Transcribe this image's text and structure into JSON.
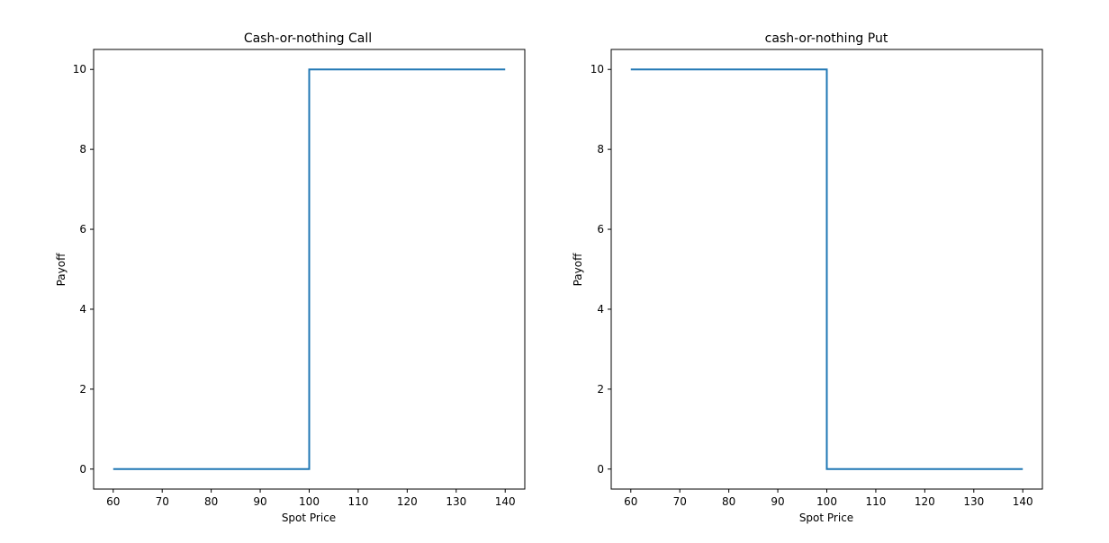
{
  "chart_data": [
    {
      "type": "line",
      "title": "Cash-or-nothing Call",
      "xlabel": "Spot Price",
      "ylabel": "Payoff",
      "xlim": [
        56,
        144
      ],
      "ylim": [
        -0.5,
        10.5
      ],
      "xticks": [
        60,
        70,
        80,
        90,
        100,
        110,
        120,
        130,
        140
      ],
      "yticks": [
        0,
        2,
        4,
        6,
        8,
        10
      ],
      "grid": false,
      "series": [
        {
          "color": "#1f77b4",
          "x": [
            60,
            100,
            100,
            140
          ],
          "y": [
            0,
            0,
            10,
            10
          ]
        }
      ]
    },
    {
      "type": "line",
      "title": "cash-or-nothing Put",
      "xlabel": "Spot Price",
      "ylabel": "Payoff",
      "xlim": [
        56,
        144
      ],
      "ylim": [
        -0.5,
        10.5
      ],
      "xticks": [
        60,
        70,
        80,
        90,
        100,
        110,
        120,
        130,
        140
      ],
      "yticks": [
        0,
        2,
        4,
        6,
        8,
        10
      ],
      "grid": false,
      "series": [
        {
          "color": "#1f77b4",
          "x": [
            60,
            100,
            100,
            140
          ],
          "y": [
            10,
            10,
            0,
            0
          ]
        }
      ]
    }
  ]
}
